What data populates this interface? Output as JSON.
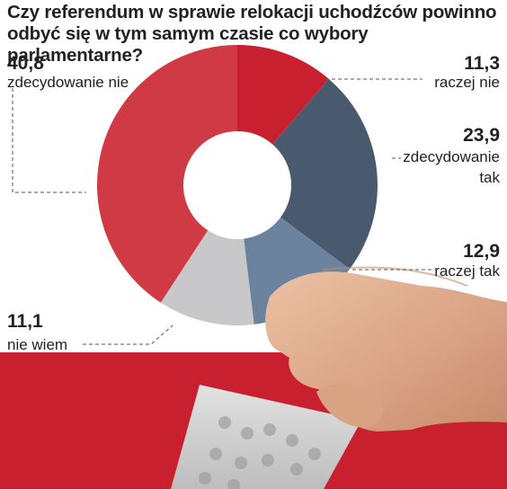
{
  "title": "Czy referendum w sprawie relokacji uchodźców powinno odbyć się w tym samym czasie co wybory parlamentarne?",
  "chart_data": {
    "type": "pie",
    "donut": true,
    "unit": "%",
    "slices": [
      {
        "label": "raczej nie",
        "value": 11.3,
        "value_text": "11,3",
        "color": "#c8202f"
      },
      {
        "label": "zdecydowanie tak",
        "value": 23.9,
        "value_text": "23,9",
        "color": "#4a5a6e"
      },
      {
        "label": "raczej tak",
        "value": 12.9,
        "value_text": "12,9",
        "color": "#6c83a0"
      },
      {
        "label": "nie wiem",
        "value": 11.1,
        "value_text": "11,1",
        "color": "#c8c8ca"
      },
      {
        "label": "zdecydowanie nie",
        "value": 40.8,
        "value_text": "40,8",
        "color": "#cf3a45"
      }
    ]
  },
  "colors": {
    "flag_red": "#c8202f",
    "background": "#ffffff",
    "text": "#222222"
  },
  "illustration": "hand-inserting-ballot-into-box"
}
